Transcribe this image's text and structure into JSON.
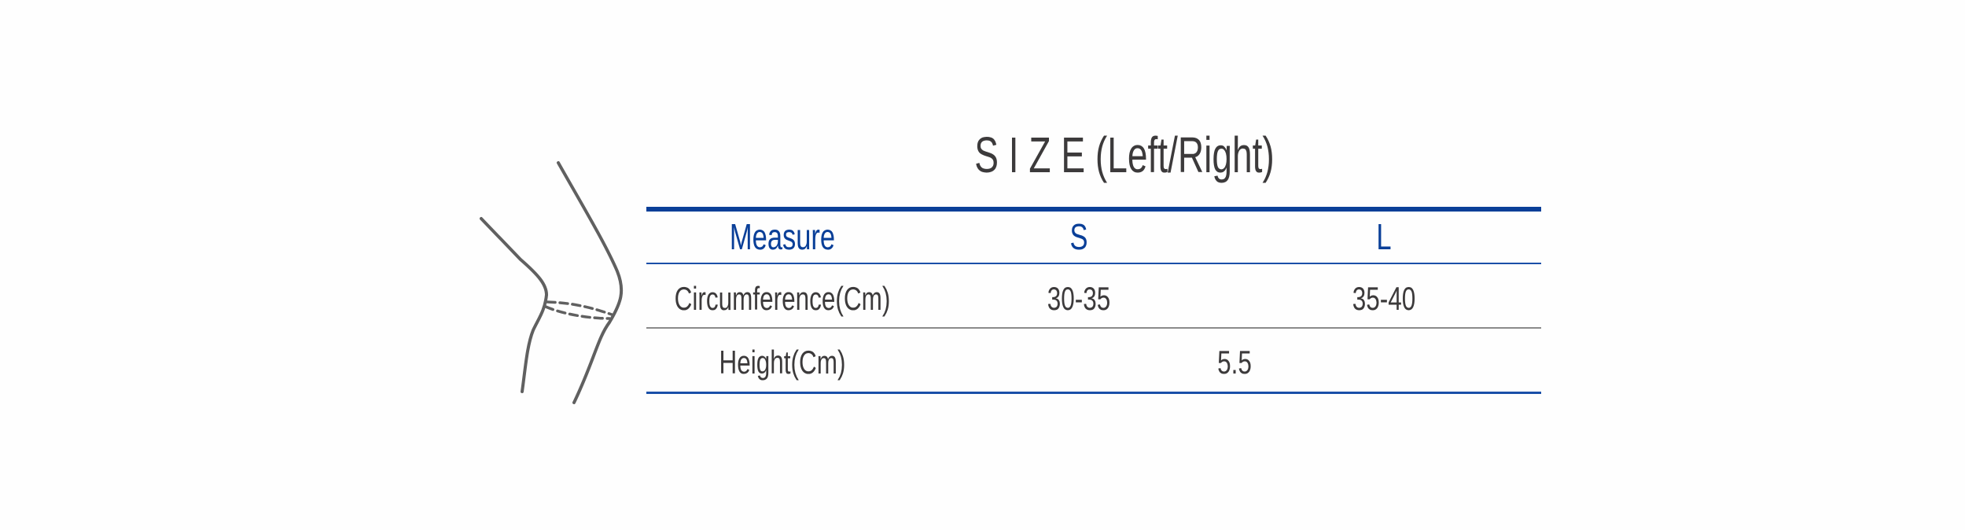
{
  "title": "S I Z E (Left/Right)",
  "table": {
    "headers": [
      "Measure",
      "S",
      "L"
    ],
    "rows": [
      {
        "label": "Circumference(Cm)",
        "values": [
          "30-35",
          "35-40"
        ]
      },
      {
        "label": "Height(Cm)",
        "value": "5.5"
      }
    ]
  },
  "colors": {
    "accent": "#0a3f98",
    "text": "#3c3a3b",
    "divider": "#8a8a8a",
    "drawing": "#606060"
  },
  "illustration": "knee-outline-icon"
}
